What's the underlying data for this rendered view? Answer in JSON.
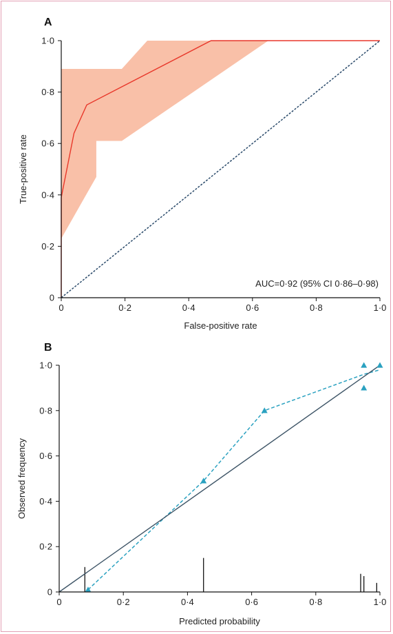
{
  "chart_data": [
    {
      "panel": "A",
      "type": "line",
      "xlabel": "False-positive rate",
      "ylabel": "True-positive rate",
      "xlim": [
        0,
        1
      ],
      "ylim": [
        0,
        1
      ],
      "xticks": [
        0,
        0.2,
        0.4,
        0.6,
        0.8,
        1.0
      ],
      "yticks": [
        0,
        0.2,
        0.4,
        0.6,
        0.8,
        1.0
      ],
      "xtick_labels": [
        "0",
        "0·2",
        "0·4",
        "0·6",
        "0·8",
        "1·0"
      ],
      "ytick_labels": [
        "0",
        "0·2",
        "0·4",
        "0·6",
        "0·8",
        "1·0"
      ],
      "annotation": "AUC=0·92 (95% CI 0·86–0·98)",
      "series": [
        {
          "role": "roc-curve",
          "color": "#e8372a",
          "x": [
            0,
            0,
            0.04,
            0.08,
            0.47,
            1.0
          ],
          "y": [
            0,
            0.39,
            0.64,
            0.75,
            1.0,
            1.0
          ]
        },
        {
          "role": "reference-diagonal",
          "color": "#2a4a6a",
          "dashed": true,
          "x": [
            0,
            1
          ],
          "y": [
            0,
            1
          ]
        }
      ],
      "confidence_band": {
        "color": "#f9c0a8",
        "upper": {
          "x": [
            0,
            0,
            0.19,
            0.27,
            1.0
          ],
          "y": [
            0.89,
            0.89,
            0.89,
            1.0,
            1.0
          ]
        },
        "lower": {
          "x": [
            0,
            0.11,
            0.11,
            0.19,
            0.65,
            1.0
          ],
          "y": [
            0.23,
            0.47,
            0.61,
            0.61,
            1.0,
            1.0
          ]
        }
      }
    },
    {
      "panel": "B",
      "type": "scatter",
      "xlabel": "Predicted probability",
      "ylabel": "Observed frequency",
      "xlim": [
        0,
        1
      ],
      "ylim": [
        0,
        1
      ],
      "xticks": [
        0,
        0.2,
        0.4,
        0.6,
        0.8,
        1.0
      ],
      "yticks": [
        0,
        0.2,
        0.4,
        0.6,
        0.8,
        1.0
      ],
      "xtick_labels": [
        "0",
        "0·2",
        "0·4",
        "0·6",
        "0·8",
        "1·0"
      ],
      "ytick_labels": [
        "0",
        "0·2",
        "0·4",
        "0·6",
        "0·8",
        "1·0"
      ],
      "series": [
        {
          "role": "observed-points",
          "color": "#2aa1c0",
          "marker": "triangle",
          "x": [
            0.09,
            0.45,
            0.64,
            0.95,
            0.95,
            1.0
          ],
          "y": [
            0.01,
            0.49,
            0.8,
            1.0,
            0.9,
            1.0
          ]
        },
        {
          "role": "smoothed-fit",
          "color": "#2aa1c0",
          "dashed": true,
          "x": [
            0.09,
            0.45,
            0.64,
            0.95,
            1.0
          ],
          "y": [
            0.01,
            0.49,
            0.8,
            0.96,
            0.98
          ]
        },
        {
          "role": "perfect-calibration",
          "color": "#3d5466",
          "x": [
            0,
            1.0
          ],
          "y": [
            0,
            1.0
          ]
        }
      ],
      "rug": {
        "color": "#111111",
        "x": [
          0.08,
          0.45,
          0.94,
          0.95,
          0.99
        ],
        "height": [
          0.11,
          0.15,
          0.08,
          0.07,
          0.04
        ]
      }
    }
  ]
}
